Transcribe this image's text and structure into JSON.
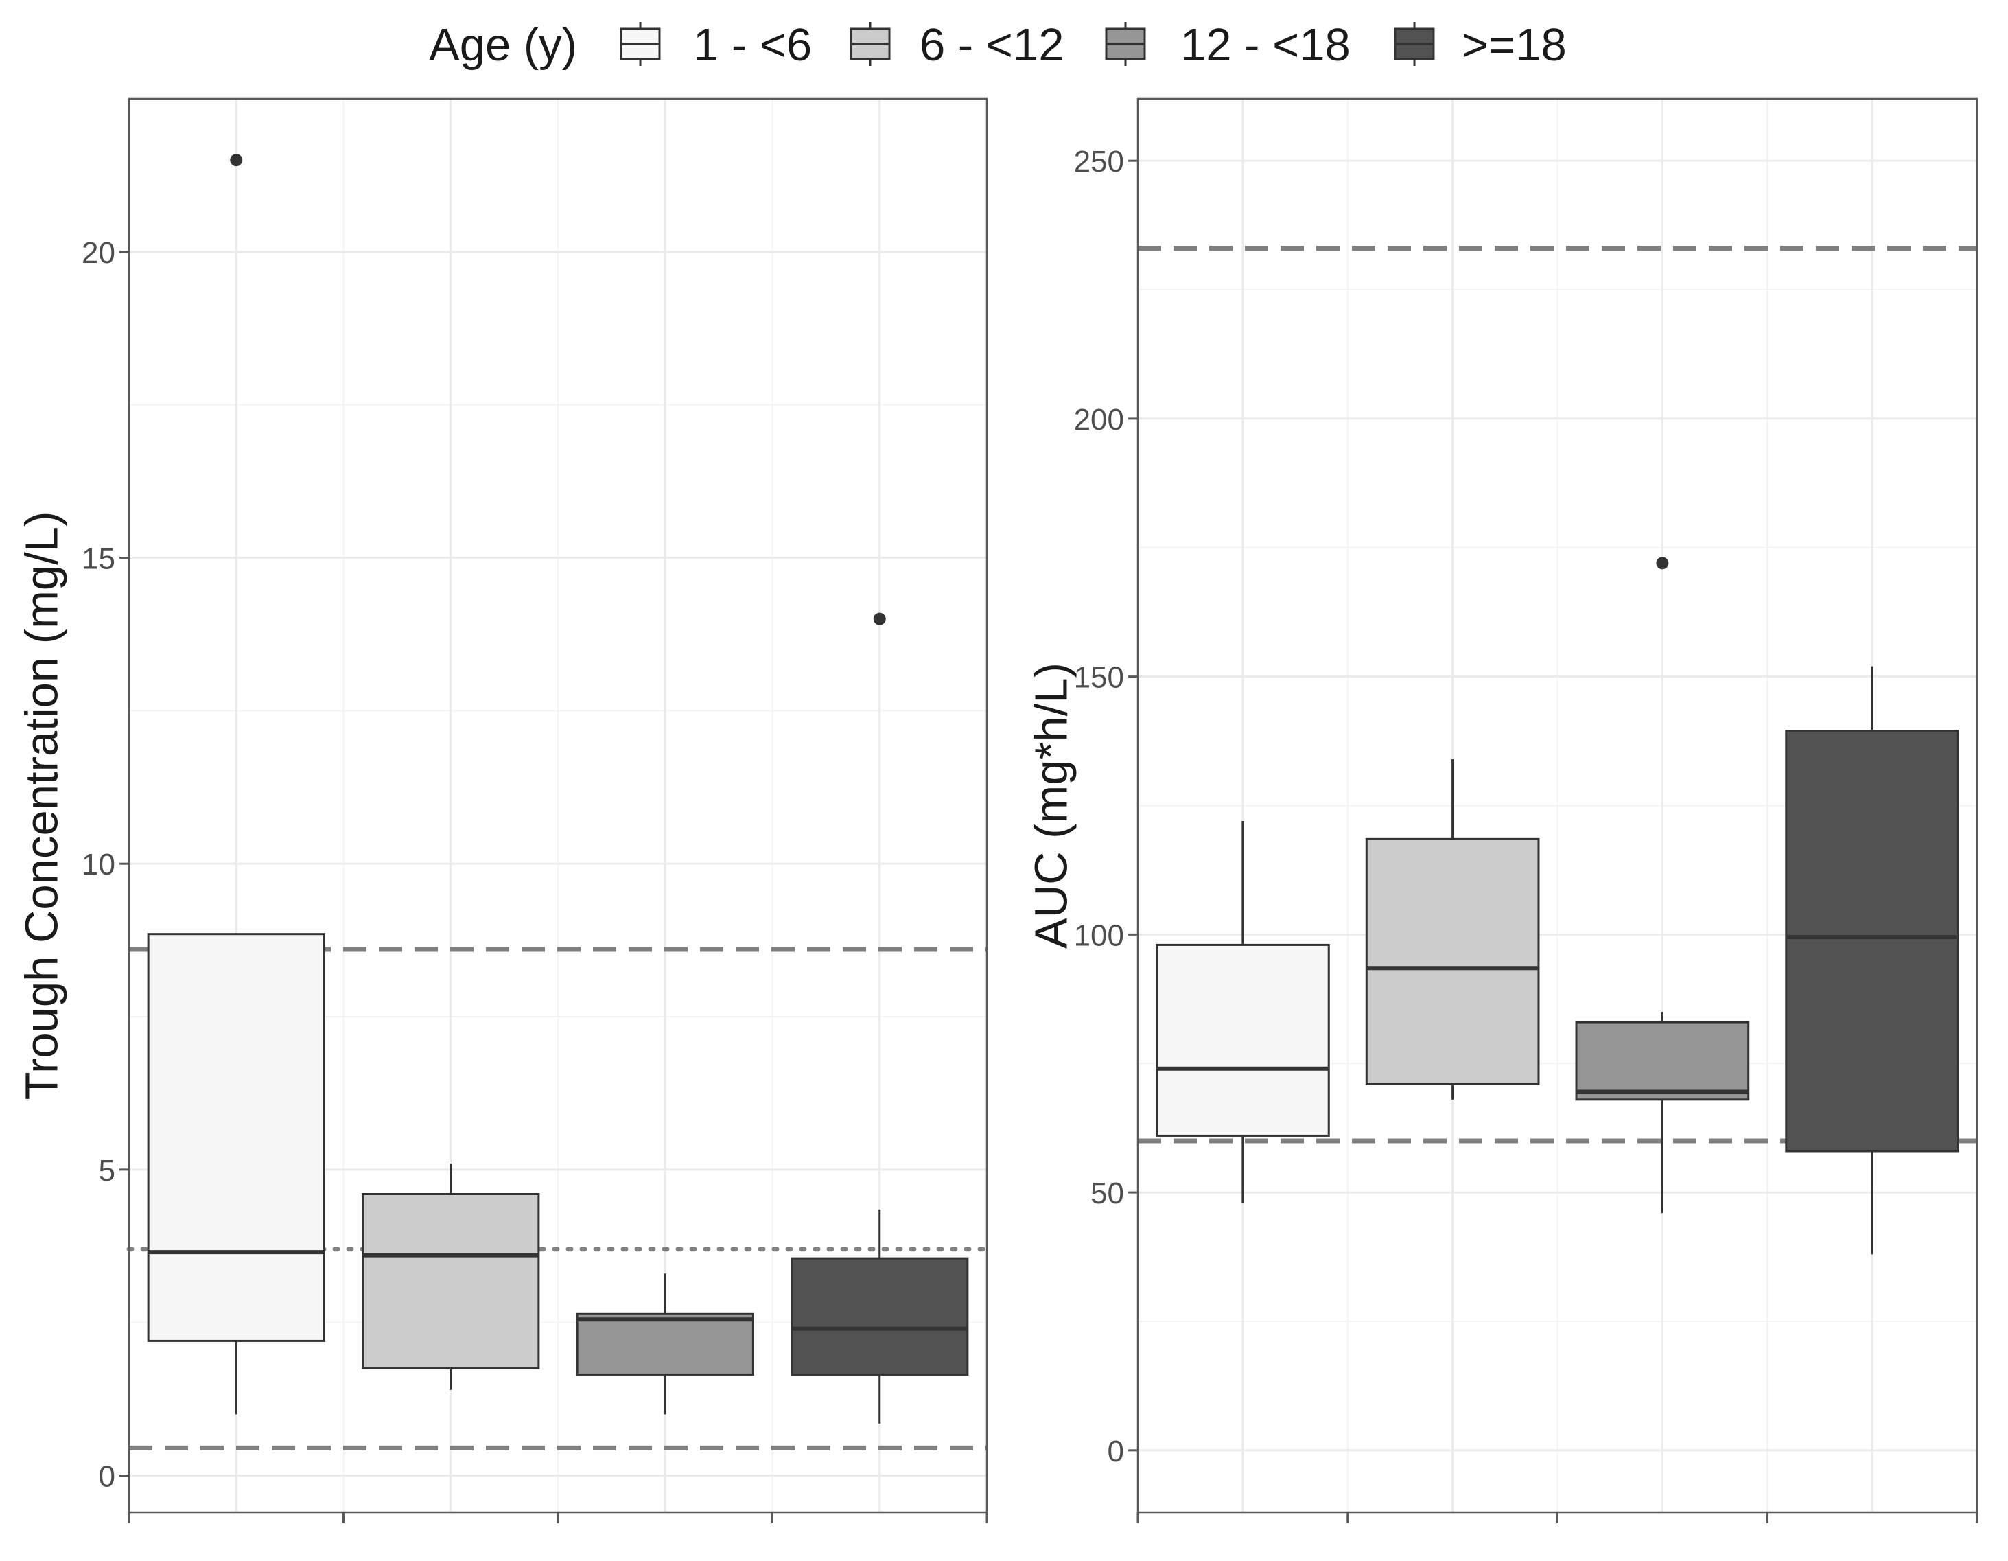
{
  "chart_data": [
    {
      "type": "boxplot",
      "panel": "left",
      "ylabel": "Trough Concentration (mg/L)",
      "xlabel": "",
      "ylim": [
        -0.6,
        22.5
      ],
      "yticks": [
        0,
        5,
        10,
        15,
        20
      ],
      "ytick_labels": [
        "0",
        "5",
        "10",
        "15",
        "20"
      ],
      "groups": [
        {
          "name": "1 - <6",
          "q1": 2.2,
          "median": 3.65,
          "q3": 8.85,
          "whisker_low": 1.0,
          "whisker_high": 8.85,
          "outliers": [
            21.5
          ]
        },
        {
          "name": "6 - <12",
          "q1": 1.75,
          "median": 3.6,
          "q3": 4.6,
          "whisker_low": 1.4,
          "whisker_high": 5.1,
          "outliers": []
        },
        {
          "name": "12 - <18",
          "q1": 1.65,
          "median": 2.55,
          "q3": 2.65,
          "whisker_low": 1.0,
          "whisker_high": 3.3,
          "outliers": []
        },
        {
          "name": ">=18",
          "q1": 1.65,
          "median": 2.4,
          "q3": 3.55,
          "whisker_low": 0.85,
          "whisker_high": 4.35,
          "outliers": [
            14.0
          ]
        }
      ],
      "reference_lines": [
        {
          "value": 8.6,
          "style": "dashed"
        },
        {
          "value": 3.7,
          "style": "dotted"
        },
        {
          "value": 0.45,
          "style": "dashed"
        }
      ]
    },
    {
      "type": "boxplot",
      "panel": "right",
      "ylabel": "AUC (mg*h/L)",
      "xlabel": "",
      "ylim": [
        -12,
        262
      ],
      "yticks": [
        0,
        50,
        100,
        150,
        200,
        250
      ],
      "ytick_labels": [
        "0",
        "50",
        "100",
        "150",
        "200",
        "250"
      ],
      "groups": [
        {
          "name": "1 - <6",
          "q1": 61,
          "median": 74,
          "q3": 98,
          "whisker_low": 48,
          "whisker_high": 122,
          "outliers": []
        },
        {
          "name": "6 - <12",
          "q1": 71,
          "median": 93.5,
          "q3": 118.5,
          "whisker_low": 68,
          "whisker_high": 134,
          "outliers": []
        },
        {
          "name": "12 - <18",
          "q1": 68,
          "median": 69.5,
          "q3": 83,
          "whisker_low": 46,
          "whisker_high": 85,
          "outliers": [
            172
          ]
        },
        {
          "name": ">=18",
          "q1": 58,
          "median": 99.5,
          "q3": 139.5,
          "whisker_low": 38,
          "whisker_high": 152,
          "outliers": []
        }
      ],
      "reference_lines": [
        {
          "value": 233,
          "style": "dashed"
        },
        {
          "value": 60,
          "style": "dashed"
        }
      ]
    }
  ],
  "legend": {
    "title": "Age (y)",
    "entries": [
      {
        "label": "1 - <6",
        "color": "#f7f7f7"
      },
      {
        "label": "6 - <12",
        "color": "#cccccc"
      },
      {
        "label": "12 - <18",
        "color": "#969696"
      },
      {
        "label": ">=18",
        "color": "#525252"
      }
    ]
  },
  "colors": {
    "box_border": "#333333",
    "median": "#333333",
    "whisker": "#333333",
    "reference_line": "#808080",
    "grid_major": "#ebebeb",
    "grid_minor": "#f4f4f4",
    "panel_border": "#595959",
    "tick_label": "#4d4d4d",
    "axis_title": "#1a1a1a",
    "outlier": "#333333"
  }
}
